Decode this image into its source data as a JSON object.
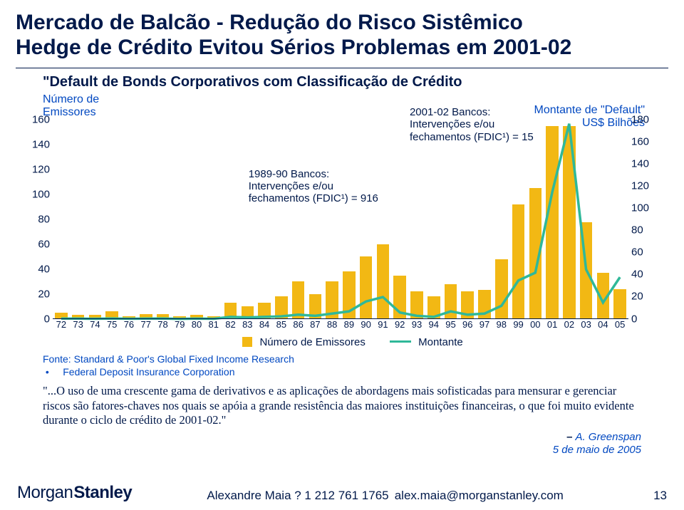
{
  "title_line1": "Mercado de Balcão - Redução do Risco Sistêmico",
  "title_line2": "Hedge de Crédito Evitou Sérios Problemas em 2001-02",
  "subtitle": "\"Default de Bonds Corporativos com Classificação de Crédito",
  "left_axis_label_l1": "Número de",
  "left_axis_label_l2": "Emissores",
  "right_axis_label_l1": "Montante de \"Default\"",
  "right_axis_label_l2": "US$ Bilhões",
  "annot1_l1": "1989-90 Bancos:",
  "annot1_l2": "Intervenções e/ou",
  "annot1_l3": "fechamentos (FDIC¹) = 916",
  "annot2_l1": "2001-02 Bancos:",
  "annot2_l2": "Intervenções e/ou",
  "annot2_l3": "fechamentos (FDIC¹) = 15",
  "legend_bar": "Número de Emissores",
  "legend_line": "Montante",
  "source_prefix": "Fonte:",
  "source_l1": "Standard & Poor's Global Fixed Income Research",
  "source_l2": "Federal Deposit Insurance Corporation",
  "quote": "\"...O uso de uma crescente gama de derivativos e as aplicações de abordagens mais sofisticadas para mensurar e gerenciar riscos são fatores-chaves nos quais se apóia a grande resistência das maiores instituições financeiras, o que foi muito evidente durante o ciclo de crédito de 2001-02.\"",
  "attr_name": "A. Greenspan",
  "attr_date": "5 de maio de 2005",
  "logo_a": "Morgan",
  "logo_b": "Stanley",
  "footer_center": "Alexandre Maia ? 1 212 761 1765  alex.maia@morganstanley.com",
  "page_num": "13",
  "chart": {
    "type": "bar+line",
    "categories": [
      "72",
      "73",
      "74",
      "75",
      "76",
      "77",
      "78",
      "79",
      "80",
      "81",
      "82",
      "83",
      "84",
      "85",
      "86",
      "87",
      "88",
      "89",
      "90",
      "91",
      "92",
      "93",
      "94",
      "95",
      "96",
      "97",
      "98",
      "99",
      "00",
      "01",
      "02",
      "03",
      "04",
      "05"
    ],
    "bar_values": [
      5,
      3,
      3,
      6,
      2,
      4,
      4,
      2,
      3,
      2,
      13,
      10,
      13,
      18,
      30,
      20,
      30,
      38,
      50,
      60,
      35,
      22,
      18,
      28,
      22,
      23,
      48,
      92,
      105,
      155,
      155,
      78,
      37,
      24
    ],
    "bar_color": "#f2b814",
    "left_ylim": [
      0,
      160
    ],
    "left_ticks": [
      0,
      20,
      40,
      60,
      80,
      100,
      120,
      140,
      160
    ],
    "line_values": [
      0.5,
      0.5,
      0.3,
      0.6,
      0.3,
      0.5,
      0.6,
      0.2,
      0.5,
      0.3,
      2,
      1.5,
      2,
      2.5,
      4,
      3,
      5,
      7,
      16,
      20,
      6,
      3,
      2,
      7,
      4,
      5,
      12,
      35,
      42,
      115,
      177,
      45,
      15,
      38
    ],
    "line_color": "#2fb899",
    "line_width": 3.5,
    "right_ylim": [
      0,
      180
    ],
    "right_ticks": [
      0,
      20,
      40,
      60,
      80,
      100,
      120,
      140,
      160,
      180
    ],
    "background_color": "#ffffff",
    "font_color": "#01194a",
    "accent_color": "#0148c1"
  }
}
